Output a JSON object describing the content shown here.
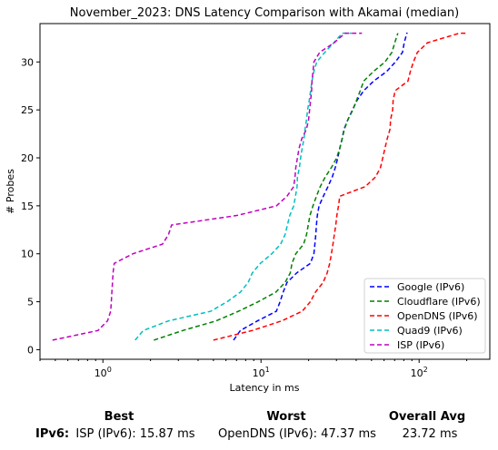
{
  "chart_data": {
    "type": "line",
    "title": "November_2023: DNS Latency Comparison with Akamai (median)",
    "xlabel": "Latency in ms",
    "ylabel": "# Probes",
    "xscale": "log",
    "xlim": [
      0.4,
      280
    ],
    "ylim": [
      -1,
      34
    ],
    "x_ticks": [
      1,
      10,
      100
    ],
    "x_tick_labels": [
      "10^0",
      "10^1",
      "10^2"
    ],
    "y_ticks": [
      0,
      5,
      10,
      15,
      20,
      25,
      30
    ],
    "legend_position": "lower-right",
    "grid": false,
    "series": [
      {
        "name": "Google (IPv6)",
        "color": "#0000ff",
        "x": [
          6.7,
          7.4,
          9.5,
          12.5,
          13.2,
          13.8,
          14.6,
          16.8,
          20.5,
          21.6,
          21.9,
          22.2,
          22.4,
          22.7,
          23.3,
          24.8,
          26.5,
          28.2,
          29.5,
          30.6,
          31.5,
          32.6,
          33.5,
          35.5,
          37.9,
          40.5,
          44.6,
          51.5,
          62.3,
          70.8,
          78.5,
          80.5,
          83.6,
          84.5
        ],
        "y": [
          1,
          2,
          3,
          4,
          5,
          6,
          7,
          8,
          9,
          10,
          11,
          12,
          13,
          14,
          15,
          16,
          17,
          18,
          19,
          20,
          21,
          22,
          23,
          24,
          25,
          26,
          27,
          28,
          29,
          30,
          31,
          32,
          33,
          33
        ]
      },
      {
        "name": "Cloudflare (IPv6)",
        "color": "#008000",
        "x": [
          2.1,
          3.2,
          5.2,
          7.2,
          9.6,
          12.4,
          14.2,
          15.3,
          15.7,
          16.6,
          18.6,
          19.4,
          19.9,
          20.4,
          21.3,
          22.4,
          23.7,
          25.5,
          27.9,
          30.1,
          31.5,
          32.6,
          33.7,
          35.5,
          38.1,
          40.2,
          42.4,
          44.6,
          51.3,
          60.8,
          67.3,
          70.1,
          73.4,
          73.4
        ],
        "y": [
          1,
          2,
          3,
          4,
          5,
          6,
          7,
          8,
          9,
          10,
          11,
          12,
          13,
          14,
          15,
          16,
          17,
          18,
          19,
          20,
          21,
          22,
          23,
          24,
          25,
          26,
          27,
          28,
          29,
          30,
          31,
          32,
          33,
          33
        ]
      },
      {
        "name": "OpenDNS (IPv6)",
        "color": "#ff0000",
        "x": [
          5.0,
          8.8,
          13.5,
          18.2,
          20.5,
          22.1,
          24.7,
          26.2,
          27.2,
          27.9,
          28.5,
          29.1,
          29.7,
          30.2,
          30.9,
          31.5,
          45.6,
          53.0,
          57.0,
          58.9,
          60.8,
          62.8,
          65.5,
          66.0,
          68.0,
          68.5,
          70.5,
          85.0,
          88.0,
          92.0,
          97.5,
          113.0,
          180.0,
          200.0
        ],
        "y": [
          1,
          2,
          3,
          4,
          5,
          6,
          7,
          8,
          9,
          10,
          11,
          12,
          13,
          14,
          15,
          16,
          17,
          18,
          19,
          20,
          21,
          22,
          23,
          24,
          25,
          26,
          27,
          28,
          29,
          30,
          31,
          32,
          33,
          33
        ]
      },
      {
        "name": "Quad9 (IPv6)",
        "color": "#00bfbf",
        "x": [
          1.6,
          1.8,
          2.6,
          4.8,
          6.1,
          7.4,
          8.3,
          8.8,
          9.9,
          11.7,
          13.3,
          14.2,
          14.7,
          15.2,
          16.1,
          16.5,
          16.9,
          17.0,
          17.5,
          17.8,
          18.2,
          18.7,
          19.0,
          19.4,
          19.7,
          20.2,
          20.6,
          21.0,
          21.6,
          22.5,
          25.3,
          28.9,
          32.6,
          37.4
        ],
        "y": [
          1,
          2,
          3,
          4,
          5,
          6,
          7,
          8,
          9,
          10,
          11,
          12,
          13,
          14,
          15,
          16,
          17,
          18,
          19,
          20,
          21,
          22,
          23,
          24,
          25,
          26,
          27,
          28,
          29,
          30,
          31,
          32,
          33,
          33
        ]
      },
      {
        "name": "ISP (IPv6)",
        "color": "#bf00bf",
        "x": [
          0.48,
          0.93,
          1.07,
          1.12,
          1.13,
          1.14,
          1.15,
          1.16,
          1.18,
          1.55,
          2.38,
          2.6,
          2.72,
          7.1,
          12.5,
          14.6,
          16.1,
          16.4,
          16.6,
          17.0,
          17.4,
          18.1,
          19.4,
          20.0,
          20.3,
          20.6,
          20.9,
          21.0,
          21.3,
          21.6,
          23.5,
          29.0,
          34.0,
          43.5
        ],
        "y": [
          1,
          2,
          3,
          4,
          5,
          6,
          7,
          8,
          9,
          10,
          11,
          12,
          13,
          14,
          15,
          16,
          17,
          18,
          19,
          20,
          21,
          22,
          23,
          24,
          25,
          26,
          27,
          28,
          29,
          30,
          31,
          32,
          33,
          33
        ]
      }
    ]
  },
  "summary": {
    "headers": {
      "best": "Best",
      "worst": "Worst",
      "overall": "Overall Avg"
    },
    "row_label": "IPv6:",
    "best": "ISP (IPv6): 15.87 ms",
    "worst": "OpenDNS (IPv6): 47.37 ms",
    "overall": "23.72 ms"
  }
}
